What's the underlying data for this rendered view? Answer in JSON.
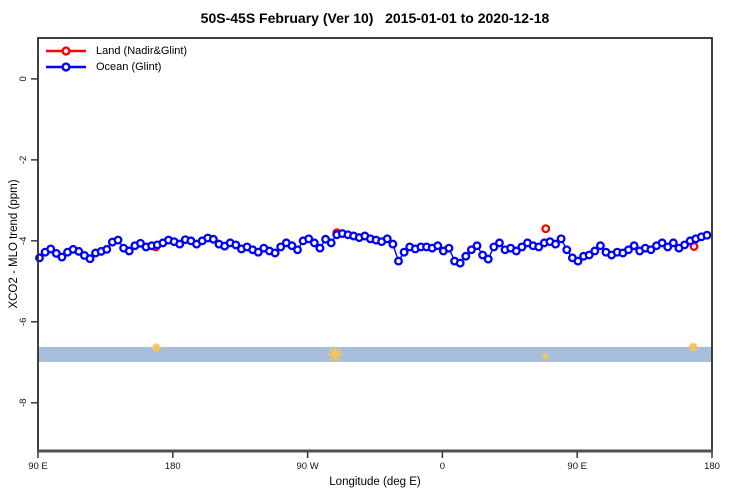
{
  "chart_data": {
    "type": "scatter",
    "title": "50S-45S February (Ver 10)   2015-01-01 to 2020-12-18",
    "xlabel": "Longitude (deg E)",
    "ylabel": "XCO2 - MLO trend (ppm)",
    "xlim": [
      90,
      540
    ],
    "ylim": [
      -9.19,
      1.01
    ],
    "x_ticks": [
      {
        "lon": 90,
        "label": "90 E"
      },
      {
        "lon": 180,
        "label": "180"
      },
      {
        "lon": 270,
        "label": "90 W"
      },
      {
        "lon": 360,
        "label": "0"
      },
      {
        "lon": 450,
        "label": "90 E"
      },
      {
        "lon": 540,
        "label": "180"
      }
    ],
    "y_ticks": [
      {
        "val": 0,
        "label": "0"
      },
      {
        "val": -2,
        "label": "-2"
      },
      {
        "val": -4,
        "label": "-4"
      },
      {
        "val": -6,
        "label": "-6"
      },
      {
        "val": -8,
        "label": "-8"
      }
    ],
    "legend": [
      {
        "name": "Land (Nadir&Glint)",
        "color": "#ff0000"
      },
      {
        "name": "Ocean (Glint)",
        "color": "#0000ff"
      }
    ],
    "band": {
      "from": -6.62,
      "to": -6.99,
      "color": "#a9bedb"
    },
    "flag_color": "#f6c35c",
    "flags": [
      {
        "lon": 169.0,
        "val": -6.64,
        "size": 3.5
      },
      {
        "lon": 288.4,
        "val": -6.81,
        "size": 6.5
      },
      {
        "lon": 428.6,
        "val": -6.85,
        "size": 2.0
      },
      {
        "lon": 527.5,
        "val": -6.62,
        "size": 3.5
      }
    ],
    "series": [
      {
        "name": "Ocean (Glint)",
        "color": "#0000ff",
        "x_start": 91.0,
        "x_step": 3.745,
        "values": [
          -4.42,
          -4.28,
          -4.2,
          -4.31,
          -4.4,
          -4.28,
          -4.21,
          -4.26,
          -4.36,
          -4.44,
          -4.3,
          -4.26,
          -4.21,
          -4.03,
          -3.98,
          -4.18,
          -4.25,
          -4.12,
          -4.06,
          -4.15,
          -4.12,
          -4.1,
          -4.05,
          -3.98,
          -4.02,
          -4.08,
          -3.97,
          -4.0,
          -4.08,
          -4.0,
          -3.93,
          -3.96,
          -4.08,
          -4.13,
          -4.05,
          -4.1,
          -4.2,
          -4.15,
          -4.22,
          -4.28,
          -4.18,
          -4.25,
          -4.3,
          -4.15,
          -4.05,
          -4.12,
          -4.22,
          -4.0,
          -3.95,
          -4.05,
          -4.18,
          -3.96,
          -4.05,
          -3.85,
          -3.82,
          -3.85,
          -3.88,
          -3.92,
          -3.88,
          -3.95,
          -3.98,
          -4.02,
          -3.95,
          -4.08,
          -4.5,
          -4.28,
          -4.15,
          -4.2,
          -4.15,
          -4.15,
          -4.18,
          -4.12,
          -4.25,
          -4.18,
          -4.5,
          -4.55,
          -4.38,
          -4.22,
          -4.12,
          -4.35,
          -4.45,
          -4.15,
          -4.05,
          -4.22,
          -4.18,
          -4.25,
          -4.15,
          -4.05,
          -4.12,
          -4.15,
          -4.05,
          -4.02,
          -4.08,
          -3.95,
          -4.22,
          -4.42,
          -4.5,
          -4.38,
          -4.35,
          -4.25,
          -4.12,
          -4.28,
          -4.35,
          -4.28,
          -4.3,
          -4.22,
          -4.12,
          -4.25,
          -4.18,
          -4.22,
          -4.12,
          -4.05,
          -4.15,
          -4.05,
          -4.18,
          -4.1,
          -4.0,
          -3.95,
          -3.9,
          -3.86
        ]
      },
      {
        "name": "Land (Nadir&Glint)",
        "color": "#ff0000",
        "points": [
          [
            168.6,
            -4.15
          ],
          [
            289.5,
            -3.8
          ],
          [
            429.0,
            -3.7
          ],
          [
            528.0,
            -4.14
          ]
        ]
      }
    ]
  }
}
